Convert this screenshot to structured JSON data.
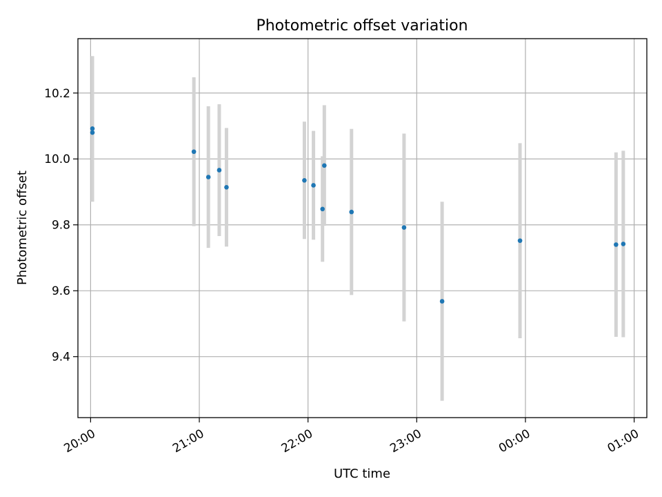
{
  "chart_data": {
    "type": "scatter",
    "title": "Photometric offset variation",
    "xlabel": "UTC time",
    "ylabel": "Photometric offset",
    "x_axis_type": "time",
    "x_range": [
      "19:53",
      "01:07"
    ],
    "x_ticks": [
      "20:00",
      "21:00",
      "22:00",
      "23:00",
      "00:00",
      "01:00"
    ],
    "ylim": [
      9.215,
      10.365
    ],
    "y_ticks": [
      9.4,
      9.6,
      9.8,
      10.0,
      10.2
    ],
    "y_tick_labels": [
      "9.4",
      "9.6",
      "9.8",
      "10.0",
      "10.2"
    ],
    "grid": true,
    "colors": {
      "marker": "#1f77b4",
      "errorbar": "#d3d3d3"
    },
    "points": [
      {
        "t": "20:01",
        "y": 10.092,
        "err": 0.22
      },
      {
        "t": "20:01",
        "y": 10.08,
        "err": 0.21
      },
      {
        "t": "20:57",
        "y": 10.022,
        "err": 0.226
      },
      {
        "t": "21:05",
        "y": 9.945,
        "err": 0.215
      },
      {
        "t": "21:11",
        "y": 9.966,
        "err": 0.2
      },
      {
        "t": "21:15",
        "y": 9.914,
        "err": 0.18
      },
      {
        "t": "21:58",
        "y": 9.935,
        "err": 0.178
      },
      {
        "t": "22:03",
        "y": 9.92,
        "err": 0.165
      },
      {
        "t": "22:08",
        "y": 9.848,
        "err": 0.16
      },
      {
        "t": "22:09",
        "y": 9.98,
        "err": 0.183
      },
      {
        "t": "22:24",
        "y": 9.839,
        "err": 0.252
      },
      {
        "t": "22:53",
        "y": 9.792,
        "err": 0.285
      },
      {
        "t": "23:14",
        "y": 9.568,
        "err": 0.302
      },
      {
        "t": "23:57",
        "y": 9.752,
        "err": 0.296
      },
      {
        "t": "00:50",
        "y": 9.74,
        "err": 0.28
      },
      {
        "t": "00:54",
        "y": 9.742,
        "err": 0.283
      }
    ]
  }
}
